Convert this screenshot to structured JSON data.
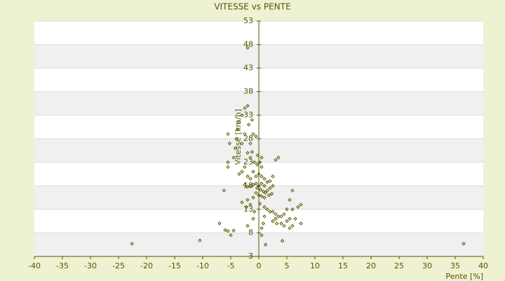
{
  "chart_data": {
    "type": "scatter",
    "title": "VITESSE vs PENTE",
    "xlabel": "Pente [%]",
    "ylabel": "Vitesse [km/h]",
    "color": "#5a5a00",
    "xlim": [
      -40,
      40
    ],
    "xticks": [
      -40,
      -35,
      -30,
      -25,
      -20,
      -15,
      -10,
      -5,
      0,
      5,
      10,
      15,
      20,
      25,
      30,
      35,
      40
    ],
    "ylim": [
      3,
      53
    ],
    "yticks": [
      3,
      8,
      13,
      18,
      23,
      28,
      33,
      38,
      43,
      48,
      53
    ],
    "grid": true,
    "x": [
      -22.6,
      -10.5,
      36.5,
      4.2,
      -2,
      -7,
      -6,
      -5.5,
      -5,
      -4.5,
      -6.2,
      -5.5,
      -5.5,
      -5.2,
      -5.5,
      -4.5,
      -4.2,
      -4,
      -3.8,
      -3.5,
      -3,
      -2.5,
      -2,
      -1.8,
      -1.2,
      -1,
      -0.5,
      -1.5,
      -2.5,
      -3,
      -2,
      -1.5,
      -0.8,
      -0.3,
      0.2,
      0.5,
      -2.5,
      -3,
      -3.5,
      -2,
      -1.5,
      -1,
      -0.5,
      0,
      0.5,
      1,
      1.5,
      2,
      2.5,
      3,
      3.5,
      2.5,
      2,
      1.5,
      1,
      0.5,
      0,
      -0.5,
      -1,
      -1.5,
      -2,
      -2.5,
      -0.3,
      0.3,
      0.8,
      1.2,
      1.8,
      2.3,
      -0.5,
      0,
      0.5,
      1,
      -1,
      -2,
      -3,
      -1.5,
      0.2,
      1,
      1.5,
      2,
      2.5,
      3,
      3.5,
      4,
      3,
      2.5,
      3.2,
      4,
      4.5,
      5,
      5.5,
      6,
      5.5,
      6.5,
      7,
      7.5,
      7.5,
      6,
      5.5,
      6,
      4.5,
      5,
      1,
      0.8,
      0.5,
      0.5,
      1.2,
      -2,
      -1,
      -2.2,
      -0.8,
      -0.2,
      0.5,
      -1.2
    ],
    "values": [
      5.7,
      6.4,
      5.7,
      6.3,
      47.3,
      10,
      8.6,
      8.4,
      7.5,
      8.5,
      17,
      22,
      23,
      27,
      29,
      24,
      26,
      28,
      30,
      31.5,
      33,
      34.5,
      35,
      31,
      32,
      29,
      28.5,
      27,
      29,
      27,
      25,
      24,
      23,
      22.5,
      23,
      22,
      22,
      21,
      20.5,
      20,
      19.5,
      21,
      20,
      20.5,
      20,
      19.5,
      18.8,
      19,
      20,
      23.5,
      24,
      18,
      17.5,
      17,
      18,
      18.5,
      18,
      18.5,
      18.2,
      18,
      17.8,
      18.2,
      17.5,
      17.2,
      16.8,
      16.5,
      16,
      16.3,
      16.5,
      16,
      15.8,
      15.5,
      15.5,
      15,
      14.5,
      14,
      14.2,
      13.5,
      13,
      12.5,
      12.5,
      12,
      11.5,
      11.5,
      11,
      10.5,
      10,
      10,
      9.5,
      10.5,
      11,
      9.5,
      9,
      11,
      13.5,
      14,
      10,
      13,
      15,
      17,
      12,
      13,
      11.5,
      10,
      9,
      7.5,
      5.5,
      9.5,
      11,
      13.5,
      12.5,
      24.5,
      24,
      25.2
    ]
  }
}
